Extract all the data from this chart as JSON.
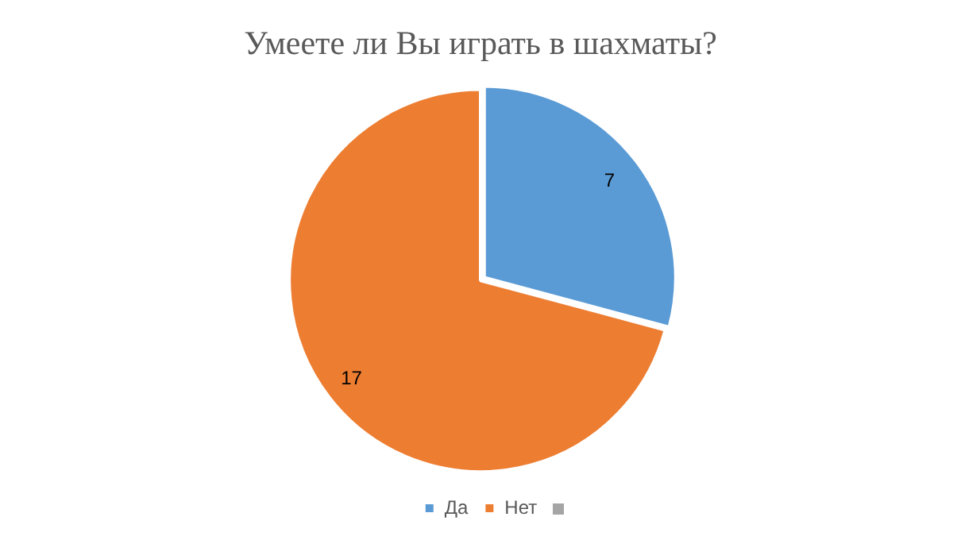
{
  "chart_data": {
    "type": "pie",
    "title": "Умеете ли Вы играть в шахматы?",
    "categories": [
      "Да",
      "Нет"
    ],
    "values": [
      7,
      17
    ],
    "colors": [
      "#5b9bd5",
      "#ed7d31"
    ],
    "data_labels": true,
    "legend": "bottom"
  }
}
